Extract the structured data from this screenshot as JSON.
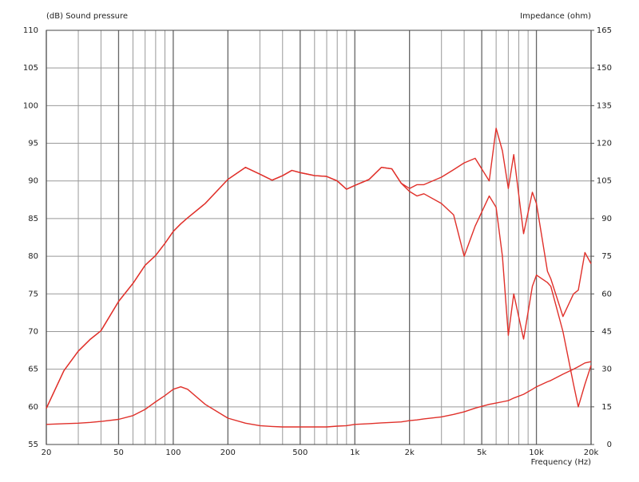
{
  "chart_data": {
    "type": "line",
    "y_label": "(dB)  Sound pressure",
    "y2_label": "Impedance  (ohm)",
    "x_label": "Frequency  (Hz)",
    "x_scale": "log",
    "grid": true,
    "xlim": [
      20,
      20000
    ],
    "xticks": [
      20,
      50,
      100,
      200,
      500,
      {
        "value": 1000,
        "label": "1k"
      },
      {
        "value": 2000,
        "label": "2k"
      },
      {
        "value": 5000,
        "label": "5k"
      },
      {
        "value": 10000,
        "label": "10k"
      },
      {
        "value": 20000,
        "label": "20k"
      }
    ],
    "minor_xticks": [
      30,
      40,
      60,
      70,
      80,
      90,
      300,
      400,
      600,
      700,
      800,
      900,
      3000,
      4000,
      6000,
      7000,
      8000,
      9000
    ],
    "ylim": [
      55,
      110
    ],
    "yticks": [
      55,
      60,
      65,
      70,
      75,
      80,
      85,
      90,
      95,
      100,
      105,
      110
    ],
    "y2lim": [
      0,
      165
    ],
    "y2ticks": [
      0,
      15,
      30,
      45,
      60,
      75,
      90,
      105,
      120,
      135,
      150,
      165
    ],
    "x": [
      20,
      25,
      30,
      35,
      40,
      50,
      60,
      70,
      80,
      90,
      100,
      110,
      120,
      150,
      200,
      250,
      300,
      350,
      400,
      450,
      500,
      600,
      700,
      800,
      900,
      1000,
      1200,
      1400,
      1600,
      1800,
      2000,
      2200,
      2400,
      3000,
      3500,
      4000,
      4600,
      5500,
      6000,
      6500,
      7000,
      7500,
      8500,
      9500,
      10000,
      11500,
      12000,
      14000,
      16000,
      17000,
      18500,
      20000
    ],
    "series": [
      {
        "color": "#e0302a",
        "values": [
          59.8,
          64.8,
          67.4,
          69,
          70.1,
          74,
          76.4,
          78.8,
          80.1,
          81.7,
          83.3,
          84.3,
          85.1,
          87,
          90.2,
          91.8,
          90.9,
          90.1,
          90.7,
          91.4,
          91.1,
          90.7,
          90.6,
          90,
          88.9,
          89.4,
          90.2,
          91.8,
          91.6,
          89.7,
          89,
          89.5,
          89.5,
          90.5,
          91.5,
          92.4,
          93,
          90,
          97,
          94,
          89,
          93.5,
          83,
          88.5,
          87,
          78,
          77,
          72,
          75,
          75.5,
          80.5,
          79
        ]
      },
      {
        "color": "#e0302a",
        "values": [
          59.8,
          64.8,
          67.4,
          69,
          70.1,
          74,
          76.4,
          78.8,
          80.1,
          81.7,
          83.3,
          84.3,
          85.1,
          87,
          90.2,
          91.8,
          90.9,
          90.1,
          90.7,
          91.4,
          91.1,
          90.7,
          90.6,
          90,
          88.9,
          89.4,
          90.2,
          91.8,
          91.6,
          89.7,
          88.6,
          88,
          88.3,
          87,
          85.5,
          80,
          84,
          88,
          86.5,
          80,
          69.5,
          75,
          69,
          76,
          77.5,
          76.5,
          76,
          70,
          63,
          60,
          63,
          65.5
        ]
      },
      {
        "color": "#e0302a",
        "axis": "y2",
        "values": [
          8,
          8.3,
          8.5,
          8.8,
          9.2,
          10,
          11.5,
          14,
          17,
          19.5,
          22,
          23,
          22,
          16,
          10.5,
          8.5,
          7.5,
          7.2,
          7,
          7,
          7,
          7,
          7,
          7.3,
          7.5,
          8,
          8.3,
          8.6,
          8.8,
          9,
          9.5,
          9.8,
          10.2,
          11,
          12,
          13,
          14.5,
          16,
          16.5,
          17,
          17.5,
          18.5,
          20,
          22,
          23,
          25,
          25.5,
          28,
          30,
          31,
          32.5,
          33
        ]
      }
    ]
  }
}
